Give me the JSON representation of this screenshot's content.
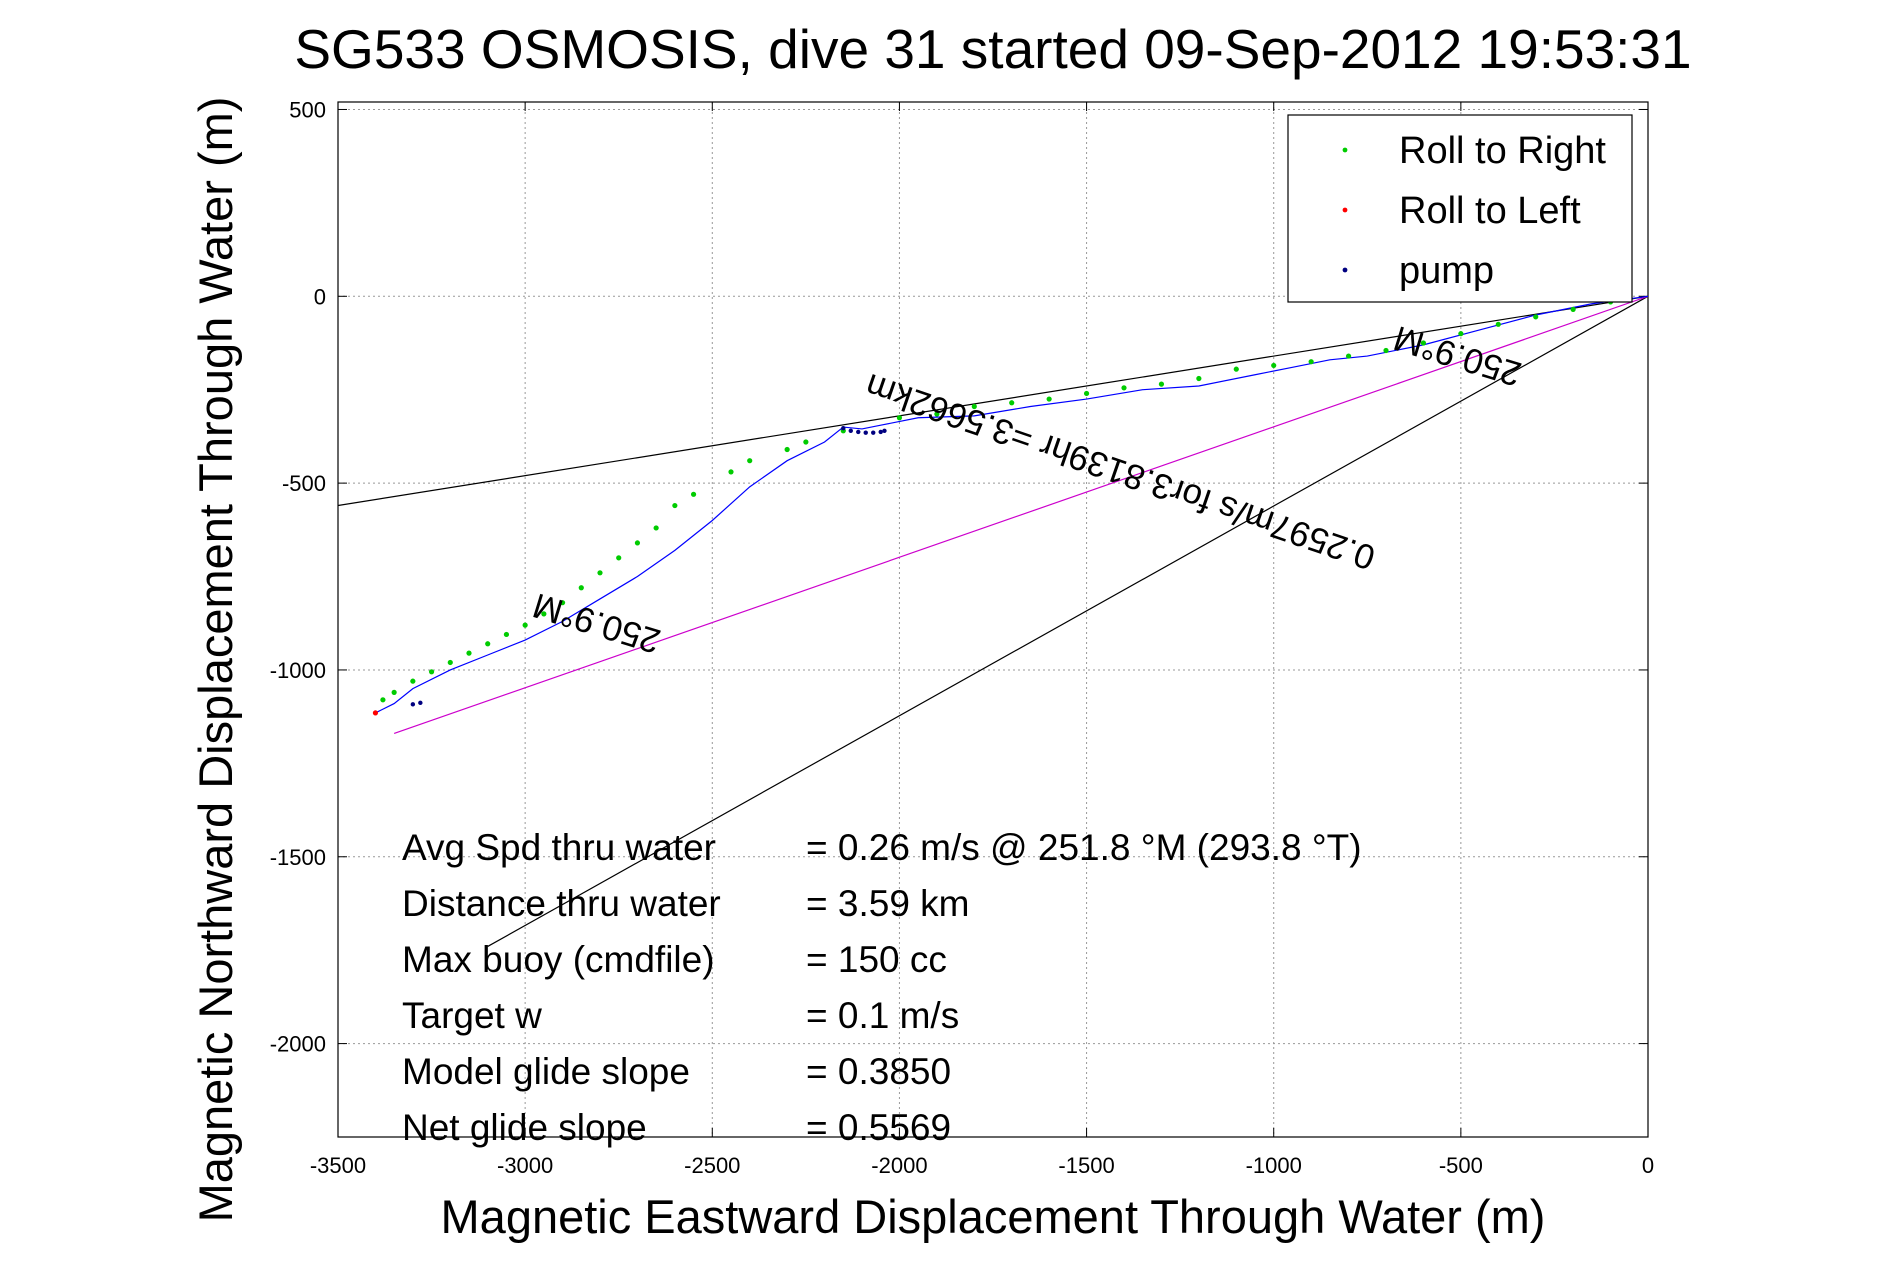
{
  "chart_data": {
    "type": "line",
    "title": "SG533 OSMOSIS, dive 31 started 09-Sep-2012 19:53:31",
    "xlabel": "Magnetic Eastward Displacement Through Water (m)",
    "ylabel": "Magnetic Northward Displacement Through Water (m)",
    "xlim": [
      -3500,
      0
    ],
    "ylim": [
      -2250,
      520
    ],
    "xticks": [
      -3500,
      -3000,
      -2500,
      -2000,
      -1500,
      -1000,
      -500,
      0
    ],
    "yticks": [
      500,
      0,
      -500,
      -1000,
      -1500,
      -2000
    ],
    "grid": true,
    "legend_position": "top-right",
    "legend": [
      {
        "label": "Roll to Right",
        "color": "#00cc00"
      },
      {
        "label": "Roll to Left",
        "color": "#ff0000"
      },
      {
        "label": "pump",
        "color": "#000080"
      }
    ],
    "track": {
      "color": "#0000ff",
      "x": [
        0,
        -150,
        -300,
        -450,
        -600,
        -750,
        -850,
        -950,
        -1050,
        -1200,
        -1350,
        -1500,
        -1650,
        -1800,
        -1950,
        -2050,
        -2100,
        -2150,
        -2200,
        -2300,
        -2400,
        -2500,
        -2600,
        -2700,
        -2800,
        -2900,
        -3000,
        -3100,
        -3200,
        -3300,
        -3350,
        -3400
      ],
      "y": [
        0,
        -20,
        -50,
        -90,
        -130,
        -160,
        -170,
        -190,
        -210,
        -240,
        -250,
        -275,
        -295,
        -320,
        -325,
        -345,
        -355,
        -350,
        -390,
        -440,
        -510,
        -600,
        -680,
        -750,
        -810,
        -870,
        -920,
        -960,
        -1000,
        -1050,
        -1090,
        -1115
      ]
    },
    "roll_right_points": {
      "x": [
        -100,
        -200,
        -300,
        -400,
        -500,
        -600,
        -700,
        -800,
        -900,
        -1000,
        -1100,
        -1200,
        -1300,
        -1400,
        -1500,
        -1600,
        -1700,
        -1800,
        -1900,
        -2000,
        -2150,
        -2250,
        -2300,
        -2400,
        -2450,
        -2550,
        -2600,
        -2650,
        -2700,
        -2750,
        -2800,
        -2850,
        -2900,
        -2950,
        -3000,
        -3050,
        -3100,
        -3150,
        -3200,
        -3250,
        -3300,
        -3350,
        -3380
      ],
      "y": [
        -15,
        -35,
        -55,
        -75,
        -100,
        -125,
        -145,
        -160,
        -175,
        -185,
        -195,
        -220,
        -235,
        -245,
        -260,
        -275,
        -285,
        -295,
        -315,
        -325,
        -360,
        -390,
        -410,
        -440,
        -470,
        -530,
        -560,
        -620,
        -660,
        -700,
        -740,
        -780,
        -820,
        -850,
        -880,
        -905,
        -930,
        -955,
        -980,
        -1005,
        -1030,
        -1060,
        -1080
      ]
    },
    "roll_left_points": {
      "x": [
        -3400
      ],
      "y": [
        -1115
      ]
    },
    "pump_points": {
      "x": [
        -2150,
        -2130,
        -2110,
        -2090,
        -2070,
        -2050,
        -2040,
        -3300,
        -3280
      ],
      "y": [
        -353,
        -360,
        -363,
        -365,
        -365,
        -363,
        -360,
        -1092,
        -1088
      ]
    },
    "guide_lines": [
      {
        "name": "upper-heading-line",
        "color": "#000000",
        "x": [
          0,
          -3500
        ],
        "y": [
          0,
          -560
        ]
      },
      {
        "name": "lower-heading-line",
        "color": "#000000",
        "x": [
          0,
          -3100
        ],
        "y": [
          0,
          -1740
        ]
      },
      {
        "name": "net-displacement-line",
        "color": "#cc00cc",
        "x": [
          0,
          -3350
        ],
        "y": [
          0,
          -1170
        ]
      }
    ],
    "annotations": [
      {
        "text": "250.9°M",
        "x": -2800,
        "y": -845,
        "rotate": 197
      },
      {
        "text": "250.9°M",
        "x": -500,
        "y": -130,
        "rotate": 197
      },
      {
        "text": "0.2597m/s for3.8139hr =3.5662km",
        "x": -1400,
        "y": -440,
        "rotate": 199
      }
    ],
    "stats": [
      {
        "label": "Avg Spd thru water",
        "value": "=  0.26 m/s @ 251.8 °M (293.8 °T)"
      },
      {
        "label": "Distance thru water",
        "value": "=  3.59 km"
      },
      {
        "label": "Max buoy (cmdfile)",
        "value": "= 150 cc"
      },
      {
        "label": "Target w",
        "value": "= 0.1 m/s"
      },
      {
        "label": "Model glide slope",
        "value": "= 0.3850"
      },
      {
        "label": "Net glide slope",
        "value": "= 0.5569"
      }
    ]
  }
}
